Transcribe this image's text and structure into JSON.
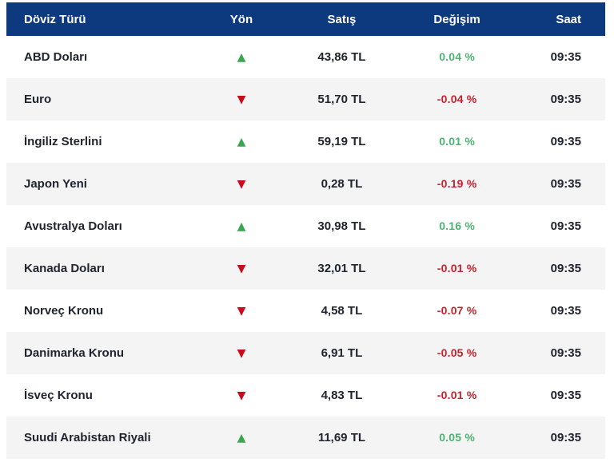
{
  "widget": {
    "type": "currency-exchange-rates-table",
    "colors": {
      "header_bg": "#0d3a7f",
      "header_text": "#ffffff",
      "row_alt_bg": "#f4f4f5",
      "body_text": "#20242f",
      "up_arrow": "#3ba650",
      "down_arrow": "#c50d1d",
      "up_text": "#4db373",
      "down_text": "#c3232e"
    }
  },
  "table": {
    "headers": [
      "Döviz Türü",
      "Yön",
      "Satış",
      "Değişim",
      "Saat"
    ],
    "direction_icons": {
      "up": "▲",
      "down": "▼"
    },
    "rows": [
      {
        "currency": "ABD Doları",
        "direction": "up",
        "satis": "43,86 TL",
        "degisim": "0.04 %",
        "saat": "09:35"
      },
      {
        "currency": "Euro",
        "direction": "down",
        "satis": "51,70 TL",
        "degisim": "-0.04 %",
        "saat": "09:35"
      },
      {
        "currency": "İngiliz Sterlini",
        "direction": "up",
        "satis": "59,19 TL",
        "degisim": "0.01 %",
        "saat": "09:35"
      },
      {
        "currency": "Japon Yeni",
        "direction": "down",
        "satis": "0,28 TL",
        "degisim": "-0.19 %",
        "saat": "09:35"
      },
      {
        "currency": "Avustralya Doları",
        "direction": "up",
        "satis": "30,98 TL",
        "degisim": "0.16 %",
        "saat": "09:35"
      },
      {
        "currency": "Kanada Doları",
        "direction": "down",
        "satis": "32,01 TL",
        "degisim": "-0.01 %",
        "saat": "09:35"
      },
      {
        "currency": "Norveç Kronu",
        "direction": "down",
        "satis": "4,58 TL",
        "degisim": "-0.07 %",
        "saat": "09:35"
      },
      {
        "currency": "Danimarka Kronu",
        "direction": "down",
        "satis": "6,91 TL",
        "degisim": "-0.05 %",
        "saat": "09:35"
      },
      {
        "currency": "İsveç Kronu",
        "direction": "down",
        "satis": "4,83 TL",
        "degisim": "-0.01 %",
        "saat": "09:35"
      },
      {
        "currency": "Suudi Arabistan Riyali",
        "direction": "up",
        "satis": "11,69 TL",
        "degisim": "0.05 %",
        "saat": "09:35"
      }
    ]
  }
}
